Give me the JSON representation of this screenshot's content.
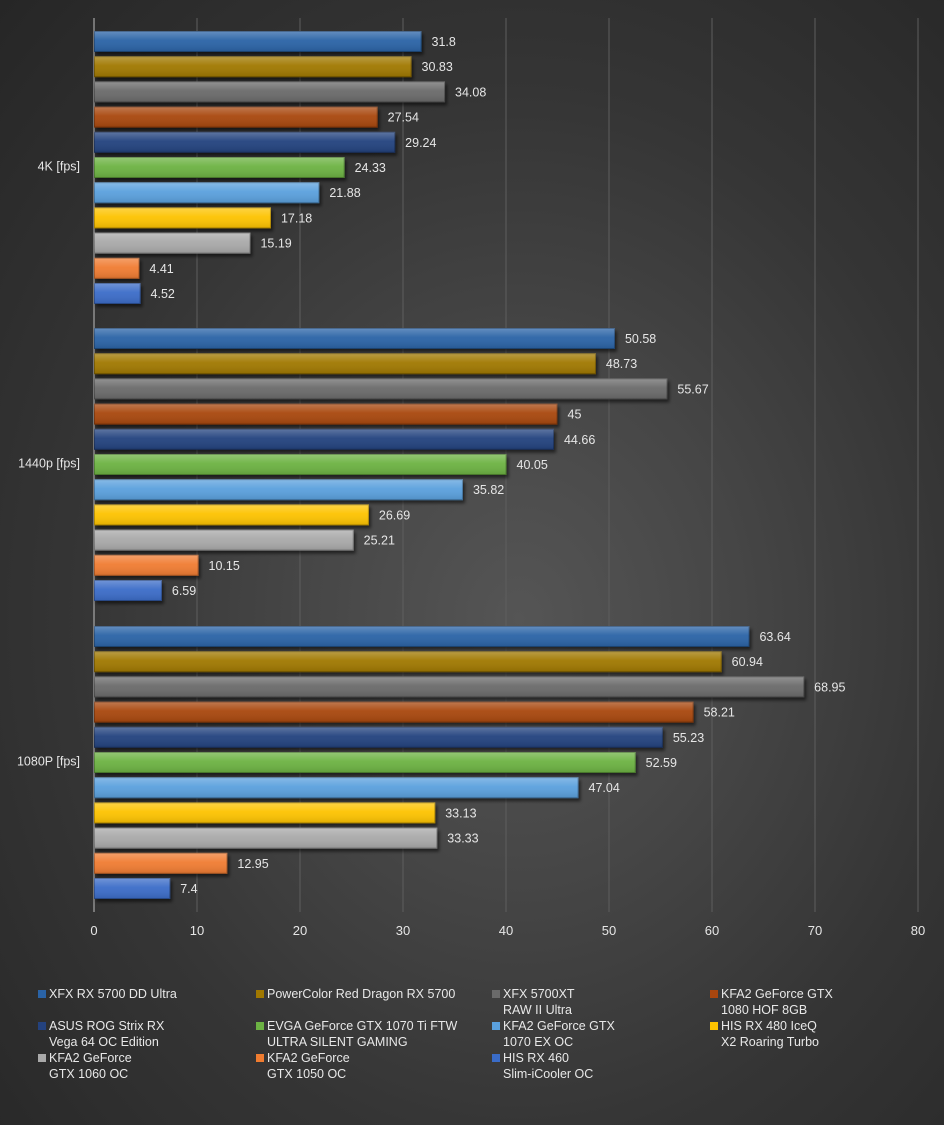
{
  "chart_data": {
    "type": "bar",
    "orientation": "horizontal",
    "title": "",
    "xlabel": "",
    "ylabel": "",
    "xlim": [
      0,
      80
    ],
    "x_ticks": [
      0,
      10,
      20,
      30,
      40,
      50,
      60,
      70,
      80
    ],
    "grid": true,
    "legend_position": "bottom",
    "categories": [
      "4K [fps]",
      "1440p [fps]",
      "1080P [fps]"
    ],
    "series": [
      {
        "name": "XFX RX 5700 DD Ultra",
        "color": "#2a63a6",
        "values": [
          31.8,
          50.58,
          63.64
        ]
      },
      {
        "name": "PowerColor Red Dragon RX 5700",
        "color": "#a07800",
        "values": [
          30.83,
          48.73,
          60.94
        ]
      },
      {
        "name": "XFX 5700XT\nRAW II Ultra",
        "color": "#6a6a6a",
        "values": [
          34.08,
          55.67,
          68.95
        ]
      },
      {
        "name": "KFA2 GeForce GTX\n1080 HOF 8GB",
        "color": "#a8460f",
        "values": [
          27.54,
          45,
          58.21
        ]
      },
      {
        "name": "ASUS ROG Strix RX\nVega 64 OC Edition",
        "color": "#24427e",
        "values": [
          29.24,
          44.66,
          55.23
        ]
      },
      {
        "name": "EVGA GeForce GTX 1070 Ti FTW\nULTRA SILENT GAMING",
        "color": "#6cb243",
        "values": [
          24.33,
          40.05,
          52.59
        ]
      },
      {
        "name": "KFA2 GeForce GTX\n1070 EX OC",
        "color": "#5aa0dd",
        "values": [
          21.88,
          35.82,
          47.04
        ]
      },
      {
        "name": "HIS RX 480 IceQ\nX2 Roaring Turbo",
        "color": "#fdc300",
        "values": [
          17.18,
          26.69,
          33.13
        ]
      },
      {
        "name": "KFA2 GeForce\nGTX 1060 OC",
        "color": "#a9a9a9",
        "values": [
          15.19,
          25.21,
          33.33
        ]
      },
      {
        "name": "KFA2 GeForce\nGTX 1050 OC",
        "color": "#f07c30",
        "values": [
          4.41,
          10.15,
          12.95
        ]
      },
      {
        "name": "HIS RX 460\nSlim-iCooler OC",
        "color": "#3a6cc8",
        "values": [
          4.52,
          6.59,
          7.4
        ]
      }
    ],
    "value_labels": [
      [
        "31.8",
        "50.58",
        "63.64"
      ],
      [
        "30.83",
        "48.73",
        "60.94"
      ],
      [
        "34.08",
        "55.67",
        "68.95"
      ],
      [
        "27.54",
        "45",
        "58.21"
      ],
      [
        "29.24",
        "44.66",
        "55.23"
      ],
      [
        "24.33",
        "40.05",
        "52.59"
      ],
      [
        "21.88",
        "35.82",
        "47.04"
      ],
      [
        "17.18",
        "26.69",
        "33.13"
      ],
      [
        "15.19",
        "25.21",
        "33.33"
      ],
      [
        "4.41",
        "10.15",
        "12.95"
      ],
      [
        "4.52",
        "6.59",
        "7.4"
      ]
    ]
  },
  "legend": {
    "items": [
      {
        "label": "XFX RX 5700 DD Ultra",
        "color": "#2a63a6"
      },
      {
        "label": "PowerColor Red Dragon RX 5700",
        "color": "#a07800"
      },
      {
        "label": "XFX 5700XT\nRAW II Ultra",
        "color": "#6a6a6a"
      },
      {
        "label": "KFA2 GeForce GTX\n1080 HOF 8GB",
        "color": "#a8460f"
      },
      {
        "label": "ASUS ROG Strix RX\nVega 64 OC Edition",
        "color": "#24427e"
      },
      {
        "label": "EVGA GeForce GTX 1070 Ti FTW\nULTRA SILENT GAMING",
        "color": "#6cb243"
      },
      {
        "label": "KFA2 GeForce GTX\n1070 EX OC",
        "color": "#5aa0dd"
      },
      {
        "label": "HIS RX 480 IceQ\nX2 Roaring Turbo",
        "color": "#fdc300"
      },
      {
        "label": "KFA2 GeForce\nGTX 1060 OC",
        "color": "#a9a9a9"
      },
      {
        "label": "KFA2 GeForce\nGTX 1050 OC",
        "color": "#f07c30"
      },
      {
        "label": "HIS RX 460\nSlim-iCooler OC",
        "color": "#3a6cc8"
      }
    ]
  }
}
